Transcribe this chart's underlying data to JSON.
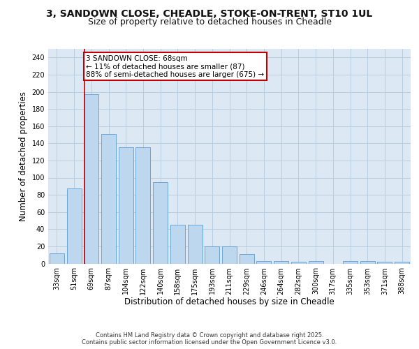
{
  "title": "3, SANDOWN CLOSE, CHEADLE, STOKE-ON-TRENT, ST10 1UL",
  "subtitle": "Size of property relative to detached houses in Cheadle",
  "xlabel": "Distribution of detached houses by size in Cheadle",
  "ylabel": "Number of detached properties",
  "categories": [
    "33sqm",
    "51sqm",
    "69sqm",
    "87sqm",
    "104sqm",
    "122sqm",
    "140sqm",
    "158sqm",
    "175sqm",
    "193sqm",
    "211sqm",
    "229sqm",
    "246sqm",
    "264sqm",
    "282sqm",
    "300sqm",
    "317sqm",
    "335sqm",
    "353sqm",
    "371sqm",
    "388sqm"
  ],
  "values": [
    12,
    87,
    197,
    151,
    135,
    135,
    95,
    45,
    45,
    20,
    20,
    11,
    3,
    3,
    2,
    3,
    0,
    3,
    3,
    2,
    2
  ],
  "bar_color": "#bdd7ee",
  "bar_edge_color": "#5b9bd5",
  "vline_x_index": 2,
  "vline_color": "#c00000",
  "annotation_text": "3 SANDOWN CLOSE: 68sqm\n← 11% of detached houses are smaller (87)\n88% of semi-detached houses are larger (675) →",
  "annotation_box_color": "#ffffff",
  "annotation_box_edge_color": "#c00000",
  "ylim": [
    0,
    250
  ],
  "yticks": [
    0,
    20,
    40,
    60,
    80,
    100,
    120,
    140,
    160,
    180,
    200,
    220,
    240
  ],
  "background_color": "#ffffff",
  "plot_bg_color": "#dce9f5",
  "grid_color": "#b8cfe0",
  "footer": "Contains HM Land Registry data © Crown copyright and database right 2025.\nContains public sector information licensed under the Open Government Licence v3.0.",
  "title_fontsize": 10,
  "subtitle_fontsize": 9,
  "axis_label_fontsize": 8.5,
  "tick_fontsize": 7,
  "annotation_fontsize": 7.5,
  "footer_fontsize": 6
}
